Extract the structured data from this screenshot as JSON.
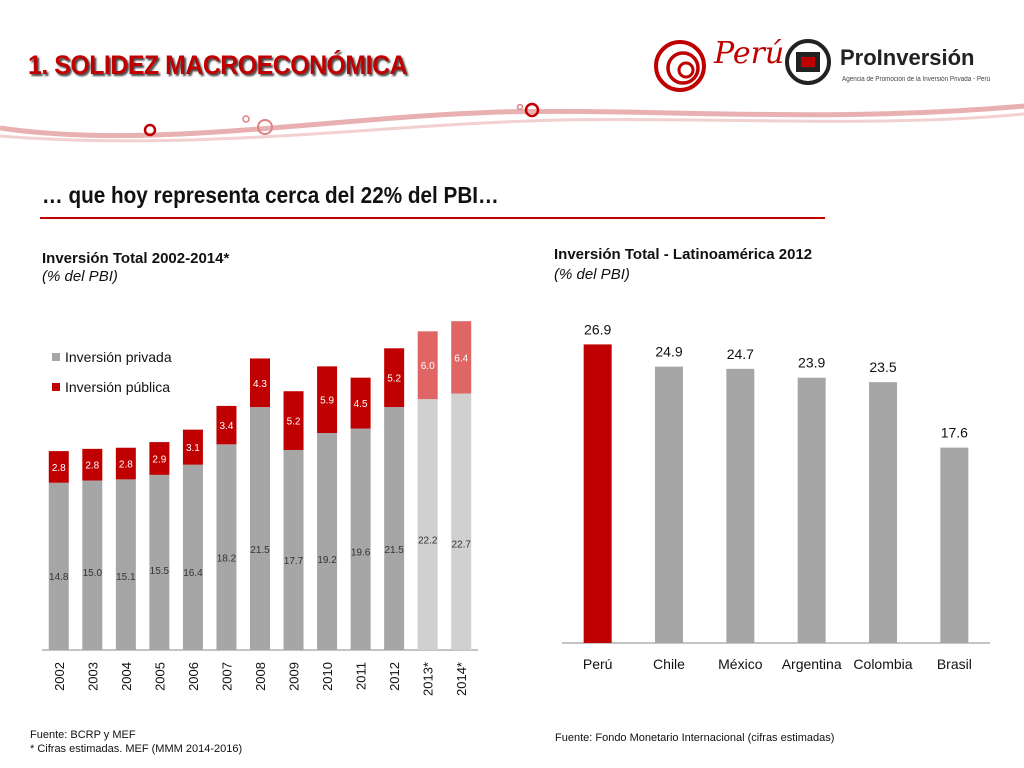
{
  "header": {
    "title": "1. SOLIDEZ MACROECONÓMICA",
    "logo_peru_text": "Perú",
    "logo_proinversion_name": "ProInversión",
    "logo_proinversion_tagline": "Agencia de Promoción de la Inversión Privada - Perú"
  },
  "subtitle": "… que hoy representa cerca del 22% del PBI…",
  "left_chart": {
    "title": "Inversión Total 2002-2014*",
    "unit": "(% del PBI)",
    "source_line1": "Fuente: BCRP y MEF",
    "source_line2": "* Cifras estimadas. MEF (MMM 2014-2016)"
  },
  "right_chart": {
    "title": "Inversión Total - Latinoamérica  2012",
    "unit": "(% del PBI)",
    "source": "Fuente: Fondo Monetario Internacional (cifras estimadas)"
  },
  "colors": {
    "privada": "#a6a6a6",
    "publica": "#c00000",
    "privada_estimada": "#d0d0d0",
    "publica_estimada": "#e06666",
    "highlight": "#c00000",
    "title": "#c00000"
  },
  "chart_data": [
    {
      "type": "bar",
      "stacked": true,
      "categories": [
        "2002",
        "2003",
        "2004",
        "2005",
        "2006",
        "2007",
        "2008",
        "2009",
        "2010",
        "2011",
        "2012",
        "2013*",
        "2014*"
      ],
      "estimated_categories": [
        "2013*",
        "2014*"
      ],
      "series": [
        {
          "name": "Inversión privada",
          "values": [
            14.8,
            15.0,
            15.1,
            15.5,
            16.4,
            18.2,
            21.5,
            17.7,
            19.2,
            19.6,
            21.5,
            22.2,
            22.7
          ]
        },
        {
          "name": "Inversión pública",
          "values": [
            2.8,
            2.8,
            2.8,
            2.9,
            3.1,
            3.4,
            4.3,
            5.2,
            5.9,
            4.5,
            5.2,
            6.0,
            6.4
          ]
        }
      ],
      "ylim": [
        0,
        30
      ],
      "legend": "top-left",
      "grid": false
    },
    {
      "type": "bar",
      "categories": [
        "Perú",
        "Chile",
        "México",
        "Argentina",
        "Colombia",
        "Brasil"
      ],
      "values": [
        26.9,
        24.9,
        24.7,
        23.9,
        23.5,
        17.6
      ],
      "highlight_category": "Perú",
      "ylim": [
        0,
        30
      ],
      "grid": false
    }
  ]
}
